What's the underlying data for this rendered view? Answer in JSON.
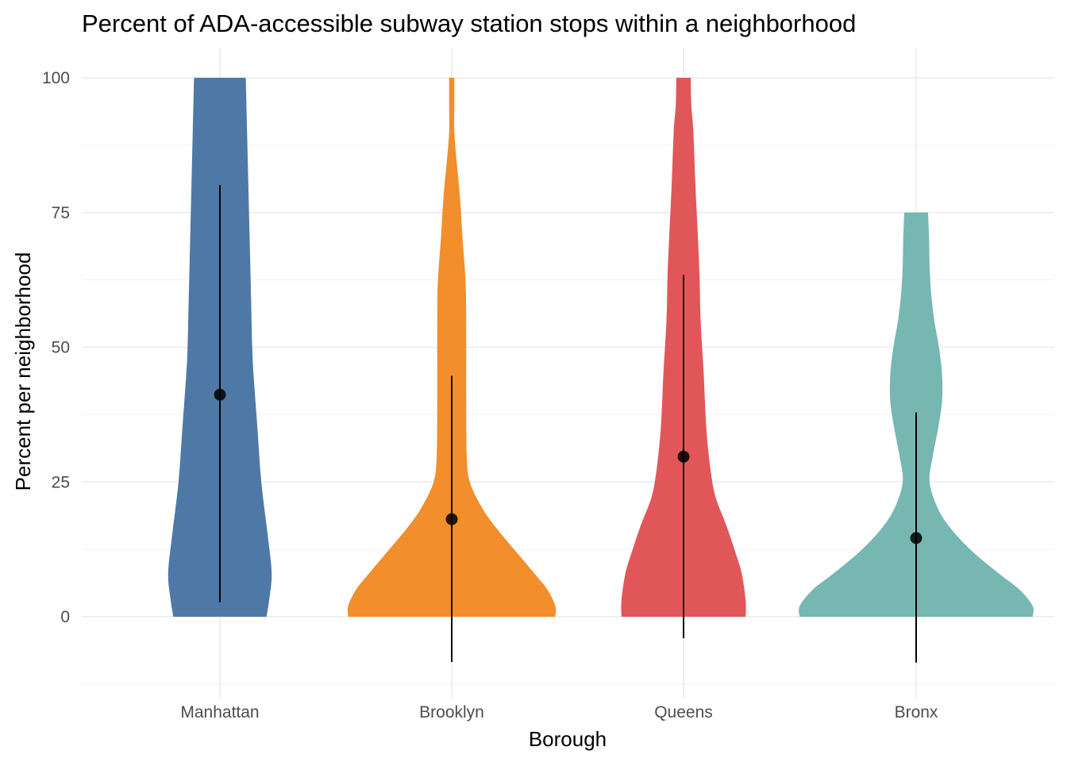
{
  "chart_data": {
    "type": "violin",
    "title": "Percent of ADA-accessible subway station stops within a neighborhood",
    "xlabel": "Borough",
    "ylabel": "Percent per neighborhood",
    "categories": [
      "Manhattan",
      "Brooklyn",
      "Queens",
      "Bronx"
    ],
    "colors": [
      "#4E79A7",
      "#F28E2B",
      "#E15759",
      "#76B7B2"
    ],
    "ylim": [
      -12.5,
      105
    ],
    "y_ticks": [
      0,
      25,
      50,
      75,
      100
    ],
    "grid": true,
    "legend": "none",
    "means": [
      41.2,
      18.1,
      29.7,
      14.6
    ],
    "error_bars": [
      {
        "low": 2.7,
        "high": 80.1
      },
      {
        "low": -8.4,
        "high": 44.7
      },
      {
        "low": -4.0,
        "high": 63.4
      },
      {
        "low": -8.5,
        "high": 37.9
      }
    ],
    "violins": [
      {
        "name": "Manhattan",
        "max": 100,
        "profile": [
          [
            0,
            0.18
          ],
          [
            3,
            0.19
          ],
          [
            8,
            0.2
          ],
          [
            15,
            0.185
          ],
          [
            25,
            0.16
          ],
          [
            35,
            0.145
          ],
          [
            45,
            0.13
          ],
          [
            50,
            0.125
          ],
          [
            60,
            0.12
          ],
          [
            70,
            0.115
          ],
          [
            80,
            0.11
          ],
          [
            90,
            0.105
          ],
          [
            100,
            0.1
          ]
        ]
      },
      {
        "name": "Brooklyn",
        "max": 100,
        "profile": [
          [
            0,
            0.4
          ],
          [
            2,
            0.4
          ],
          [
            5,
            0.37
          ],
          [
            8,
            0.32
          ],
          [
            12,
            0.25
          ],
          [
            16,
            0.18
          ],
          [
            20,
            0.12
          ],
          [
            25,
            0.07
          ],
          [
            30,
            0.058
          ],
          [
            40,
            0.056
          ],
          [
            50,
            0.056
          ],
          [
            60,
            0.055
          ],
          [
            65,
            0.05
          ],
          [
            70,
            0.042
          ],
          [
            75,
            0.036
          ],
          [
            80,
            0.028
          ],
          [
            85,
            0.018
          ],
          [
            90,
            0.01
          ],
          [
            95,
            0.01
          ],
          [
            100,
            0.01
          ]
        ]
      },
      {
        "name": "Queens",
        "max": 100,
        "profile": [
          [
            0,
            0.24
          ],
          [
            3,
            0.24
          ],
          [
            8,
            0.225
          ],
          [
            12,
            0.2
          ],
          [
            17,
            0.165
          ],
          [
            22,
            0.125
          ],
          [
            27,
            0.105
          ],
          [
            35,
            0.088
          ],
          [
            45,
            0.078
          ],
          [
            55,
            0.066
          ],
          [
            63,
            0.062
          ],
          [
            70,
            0.056
          ],
          [
            80,
            0.046
          ],
          [
            90,
            0.038
          ],
          [
            95,
            0.03
          ],
          [
            100,
            0.028
          ]
        ]
      },
      {
        "name": "Bronx",
        "max": 75,
        "profile": [
          [
            0,
            0.45
          ],
          [
            2,
            0.45
          ],
          [
            5,
            0.4
          ],
          [
            8,
            0.32
          ],
          [
            12,
            0.22
          ],
          [
            16,
            0.14
          ],
          [
            20,
            0.085
          ],
          [
            25,
            0.052
          ],
          [
            30,
            0.065
          ],
          [
            35,
            0.085
          ],
          [
            40,
            0.1
          ],
          [
            45,
            0.1
          ],
          [
            50,
            0.088
          ],
          [
            55,
            0.07
          ],
          [
            60,
            0.058
          ],
          [
            65,
            0.052
          ],
          [
            70,
            0.05
          ],
          [
            75,
            0.046
          ]
        ]
      }
    ]
  }
}
